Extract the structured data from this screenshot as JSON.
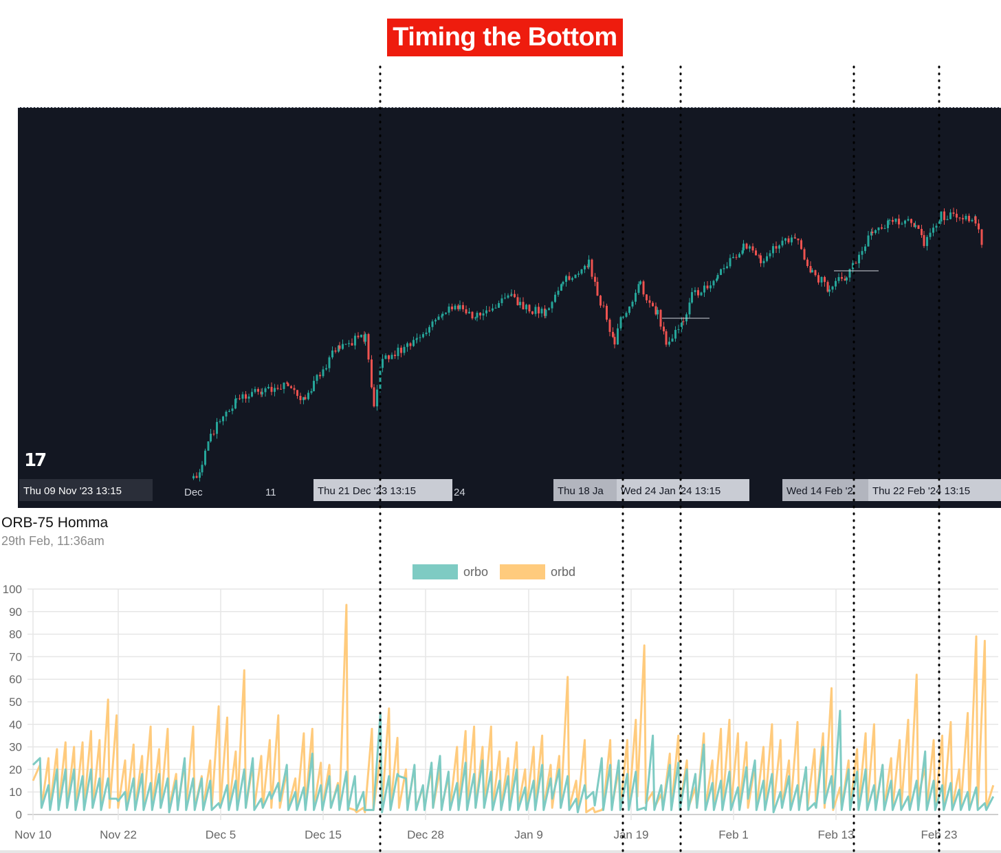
{
  "banner": {
    "title": "Timing the Bottom",
    "background": "#ee1c0e"
  },
  "price_chart": {
    "background": "#131722",
    "up_color": "#26a69a",
    "down_color": "#ef5350",
    "logo": "TV",
    "time_axis": {
      "month_label": "Dec",
      "day_label": "11",
      "partial_label": "24",
      "crosshair_labels": [
        "Thu 09 Nov '23   13:15",
        "Thu 21 Dec '23   13:15",
        "Thu 18 Ja",
        "Wed 24 Jan '24   13:15",
        "Wed 14 Feb '2",
        "Thu 22 Feb '24   13:15"
      ]
    },
    "price_path": [
      {
        "t": "2023-11-29",
        "close": 4409
      },
      {
        "t": "2023-11-30",
        "close": 4445
      },
      {
        "t": "2023-12-01",
        "close": 4526
      },
      {
        "t": "2023-12-04",
        "close": 4615
      },
      {
        "t": "2023-12-07",
        "close": 4642
      },
      {
        "t": "2023-12-10",
        "close": 4651
      },
      {
        "t": "2023-12-12",
        "close": 4606
      },
      {
        "t": "2023-12-13",
        "close": 4660
      },
      {
        "t": "2023-12-16",
        "close": 4759
      },
      {
        "t": "2023-12-19",
        "close": 4777
      },
      {
        "t": "2023-12-20",
        "close": 4597
      },
      {
        "t": "2023-12-21",
        "close": 4723
      },
      {
        "t": "2023-12-25",
        "close": 4768
      },
      {
        "t": "2023-12-28",
        "close": 4840
      },
      {
        "t": "2023-12-30",
        "close": 4858
      },
      {
        "t": "2024-01-01",
        "close": 4831
      },
      {
        "t": "2024-01-05",
        "close": 4885
      },
      {
        "t": "2024-01-06",
        "close": 4858
      },
      {
        "t": "2024-01-09",
        "close": 4840
      },
      {
        "t": "2024-01-11",
        "close": 4921
      },
      {
        "t": "2024-01-14",
        "close": 4974
      },
      {
        "t": "2024-01-15",
        "close": 4894
      },
      {
        "t": "2024-01-17",
        "close": 4768
      },
      {
        "t": "2024-01-18",
        "close": 4840
      },
      {
        "t": "2024-01-20",
        "close": 4912
      },
      {
        "t": "2024-01-22",
        "close": 4840
      },
      {
        "t": "2024-01-23",
        "close": 4759
      },
      {
        "t": "2024-01-25",
        "close": 4813
      },
      {
        "t": "2024-01-26",
        "close": 4885
      },
      {
        "t": "2024-01-29",
        "close": 4939
      },
      {
        "t": "2024-02-01",
        "close": 5019
      },
      {
        "t": "2024-02-03",
        "close": 4983
      },
      {
        "t": "2024-02-07",
        "close": 5046
      },
      {
        "t": "2024-02-09",
        "close": 4947
      },
      {
        "t": "2024-02-11",
        "close": 4903
      },
      {
        "t": "2024-02-13",
        "close": 4939
      },
      {
        "t": "2024-02-16",
        "close": 5055
      },
      {
        "t": "2024-02-18",
        "close": 5082
      },
      {
        "t": "2024-02-21",
        "close": 5073
      },
      {
        "t": "2024-02-22",
        "close": 5019
      },
      {
        "t": "2024-02-24",
        "close": 5096
      },
      {
        "t": "2024-02-28",
        "close": 5082
      },
      {
        "t": "2024-02-29",
        "close": 4992
      }
    ]
  },
  "orb_panel": {
    "title": "ORB-75 Homma",
    "subtitle": "29th Feb, 11:36am"
  },
  "chart_data": {
    "type": "line",
    "title": "",
    "xlabel": "",
    "ylabel": "",
    "ylim": [
      0,
      100
    ],
    "yticks": [
      "0",
      "10",
      "20",
      "30",
      "40",
      "50",
      "60",
      "70",
      "80",
      "90",
      "100"
    ],
    "xticks": [
      "Nov 10",
      "Nov 22",
      "Dec 5",
      "Dec 15",
      "Dec 28",
      "Jan 9",
      "Jan 19",
      "Feb 1",
      "Feb 13",
      "Feb 23"
    ],
    "grid": true,
    "legend": "top-center",
    "series": [
      {
        "name": "orbo",
        "color": "#7ecbc3",
        "troughs": [
          22,
          3,
          2,
          2,
          3,
          2,
          2,
          3,
          2,
          7,
          6,
          2,
          2,
          2,
          2,
          3,
          1,
          2,
          2,
          2,
          2,
          2,
          3,
          2,
          2,
          3,
          2,
          3,
          7,
          6,
          2,
          2,
          2,
          2,
          2,
          3,
          2,
          2,
          2,
          2,
          2,
          1,
          2,
          17,
          2,
          2,
          2,
          3,
          2,
          2,
          2,
          2,
          3,
          3,
          2,
          2,
          2,
          2,
          2,
          2,
          2,
          7,
          3,
          2,
          1,
          7,
          4,
          2,
          2,
          2,
          2,
          2,
          2,
          2,
          2,
          2,
          2,
          2,
          3,
          2,
          2,
          2,
          2,
          2,
          7,
          2,
          2,
          1,
          3,
          2,
          2,
          2,
          3,
          5,
          3,
          2,
          2,
          2,
          2,
          2,
          2,
          2,
          2,
          2,
          2,
          2,
          2,
          2,
          2,
          2,
          2,
          2,
          2
        ],
        "peaks": [
          25,
          13,
          20,
          20,
          20,
          17,
          20,
          16,
          16,
          7,
          10,
          16,
          18,
          14,
          18,
          16,
          15,
          25,
          16,
          16,
          15,
          5,
          13,
          15,
          20,
          25,
          7,
          10,
          14,
          22,
          10,
          12,
          27,
          13,
          17,
          13,
          19,
          17,
          10,
          2,
          45,
          17,
          18,
          16,
          22,
          13,
          23,
          26,
          19,
          14,
          23,
          18,
          24,
          19,
          15,
          17,
          20,
          12,
          15,
          22,
          16,
          20,
          17,
          7,
          13,
          10,
          25,
          22,
          24,
          18,
          19,
          3,
          35,
          13,
          22,
          23,
          20,
          18,
          31,
          14,
          15,
          19,
          12,
          21,
          24,
          15,
          18,
          10,
          17,
          13,
          21,
          5,
          30,
          17,
          46,
          20,
          19,
          20,
          13,
          22,
          15,
          11,
          8,
          15,
          28,
          15,
          13,
          14,
          11,
          10,
          12,
          5,
          8
        ]
      },
      {
        "name": "orbd",
        "color": "#ffcb7d",
        "troughs": [
          15,
          3,
          3,
          3,
          3,
          3,
          3,
          3,
          3,
          3,
          3,
          3,
          3,
          3,
          3,
          3,
          3,
          3,
          3,
          3,
          3,
          3,
          3,
          3,
          3,
          3,
          3,
          3,
          3,
          3,
          3,
          3,
          3,
          3,
          3,
          3,
          3,
          3,
          1,
          1,
          2,
          3,
          3,
          3,
          3,
          3,
          3,
          3,
          3,
          3,
          3,
          3,
          3,
          3,
          3,
          3,
          3,
          3,
          3,
          3,
          3,
          3,
          3,
          3,
          3,
          1,
          1,
          3,
          3,
          3,
          3,
          8,
          5,
          3,
          3,
          3,
          3,
          3,
          3,
          3,
          3,
          3,
          3,
          3,
          3,
          3,
          3,
          3,
          3,
          3,
          3,
          3,
          3,
          3,
          2,
          3,
          3,
          3,
          3,
          3,
          3,
          3,
          3,
          3,
          8,
          3,
          3,
          3,
          3,
          3,
          3,
          3,
          3
        ],
        "peaks": [
          22,
          25,
          29,
          32,
          30,
          32,
          37,
          33,
          51,
          44,
          24,
          31,
          26,
          39,
          29,
          38,
          18,
          23,
          39,
          17,
          24,
          48,
          43,
          28,
          64,
          22,
          26,
          33,
          44,
          19,
          16,
          36,
          38,
          23,
          22,
          14,
          93,
          2,
          3,
          38,
          26,
          47,
          34,
          20,
          21,
          12,
          21,
          20,
          17,
          30,
          37,
          39,
          30,
          39,
          28,
          25,
          32,
          20,
          30,
          35,
          22,
          26,
          61,
          15,
          33,
          3,
          2,
          33,
          20,
          33,
          42,
          75,
          10,
          9,
          27,
          35,
          24,
          12,
          36,
          24,
          38,
          42,
          36,
          32,
          22,
          30,
          40,
          33,
          24,
          41,
          20,
          29,
          36,
          56,
          12,
          24,
          29,
          36,
          40,
          22,
          25,
          33,
          42,
          62,
          21,
          33,
          35,
          41,
          20,
          45,
          79,
          77,
          13
        ]
      }
    ]
  }
}
